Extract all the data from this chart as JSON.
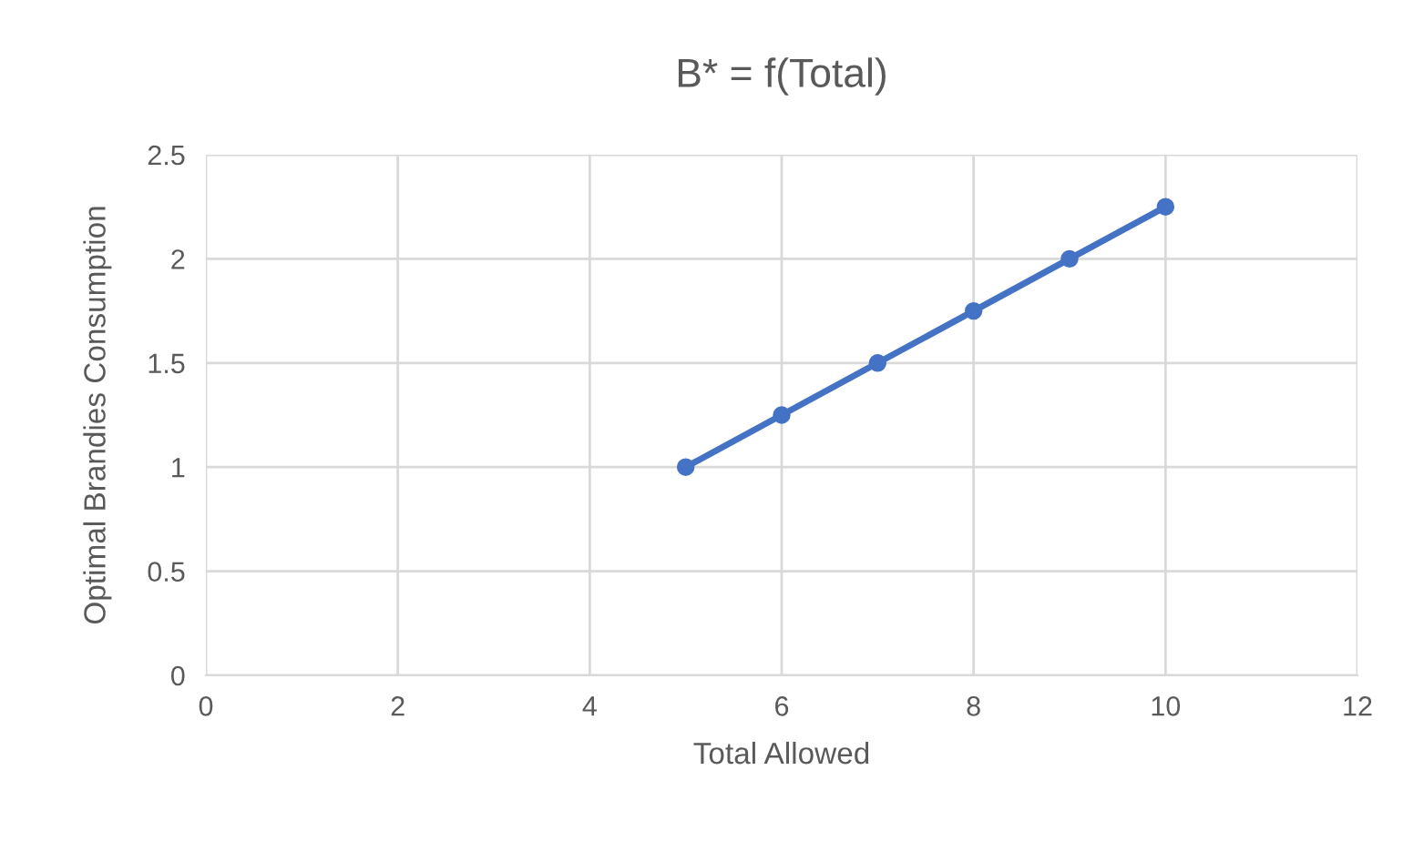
{
  "chart_data": {
    "type": "line",
    "title": "B* = f(Total)",
    "xlabel": "Total Allowed",
    "ylabel": "Optimal Brandies Consumption",
    "x": [
      5,
      6,
      7,
      8,
      9,
      10
    ],
    "series": [
      {
        "color": "#4472c4",
        "values": [
          1,
          1.25,
          1.5,
          1.75,
          2,
          2.25
        ]
      }
    ],
    "xlim": [
      0,
      12
    ],
    "xticks": [
      0,
      2,
      4,
      6,
      8,
      10,
      12
    ],
    "ylim": [
      0,
      2.5
    ],
    "yticks": [
      0,
      0.5,
      1,
      1.5,
      2,
      2.5
    ],
    "grid": true,
    "marker": "circle",
    "line_style": "solid",
    "legend": false
  }
}
